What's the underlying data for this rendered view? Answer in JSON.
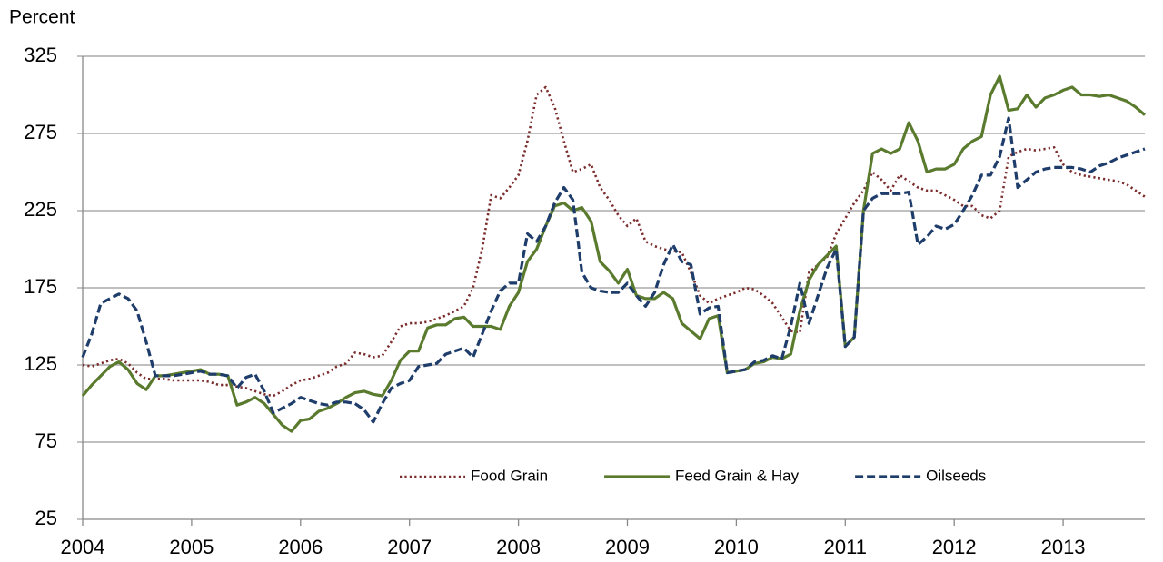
{
  "chart_data": {
    "type": "line",
    "y_label": "Percent",
    "x": [
      2004,
      2004.083,
      2004.167,
      2004.25,
      2004.333,
      2004.417,
      2004.5,
      2004.583,
      2004.667,
      2004.75,
      2004.833,
      2004.917,
      2005,
      2005.083,
      2005.167,
      2005.25,
      2005.333,
      2005.417,
      2005.5,
      2005.583,
      2005.667,
      2005.75,
      2005.833,
      2005.917,
      2006,
      2006.083,
      2006.167,
      2006.25,
      2006.333,
      2006.417,
      2006.5,
      2006.583,
      2006.667,
      2006.75,
      2006.833,
      2006.917,
      2007,
      2007.083,
      2007.167,
      2007.25,
      2007.333,
      2007.417,
      2007.5,
      2007.583,
      2007.667,
      2007.75,
      2007.833,
      2007.917,
      2008,
      2008.083,
      2008.167,
      2008.25,
      2008.333,
      2008.417,
      2008.5,
      2008.583,
      2008.667,
      2008.75,
      2008.833,
      2008.917,
      2009,
      2009.083,
      2009.167,
      2009.25,
      2009.333,
      2009.417,
      2009.5,
      2009.583,
      2009.667,
      2009.75,
      2009.833,
      2009.917,
      2010,
      2010.083,
      2010.167,
      2010.25,
      2010.333,
      2010.417,
      2010.5,
      2010.583,
      2010.667,
      2010.75,
      2010.833,
      2010.917,
      2011,
      2011.083,
      2011.167,
      2011.25,
      2011.333,
      2011.417,
      2011.5,
      2011.583,
      2011.667,
      2011.75,
      2011.833,
      2011.917,
      2012,
      2012.083,
      2012.167,
      2012.25,
      2012.333,
      2012.417,
      2012.5,
      2012.583,
      2012.667,
      2012.75,
      2012.833,
      2012.917,
      2013,
      2013.083,
      2013.167,
      2013.25,
      2013.333,
      2013.417,
      2013.5,
      2013.583,
      2013.667,
      2013.75
    ],
    "series": [
      {
        "name": "Food Grain",
        "color": "#7b2c2c",
        "style": "dotted",
        "values": [
          125,
          124,
          126,
          128,
          129,
          126,
          120,
          116,
          116,
          116,
          115,
          115,
          115,
          115,
          114,
          112,
          112,
          111,
          110,
          108,
          106,
          105,
          108,
          112,
          115,
          116,
          118,
          120,
          124,
          126,
          133,
          132,
          130,
          131,
          140,
          150,
          152,
          152,
          153,
          155,
          157,
          160,
          163,
          175,
          200,
          235,
          233,
          240,
          248,
          270,
          300,
          305,
          292,
          270,
          250,
          252,
          255,
          240,
          232,
          222,
          215,
          220,
          205,
          202,
          200,
          199,
          198,
          185,
          170,
          165,
          168,
          170,
          172,
          175,
          174,
          170,
          165,
          156,
          147,
          146,
          185,
          190,
          195,
          210,
          220,
          230,
          238,
          250,
          245,
          238,
          248,
          244,
          240,
          238,
          238,
          235,
          232,
          228,
          228,
          222,
          220,
          225,
          260,
          263,
          265,
          264,
          265,
          266,
          255,
          250,
          248,
          247,
          246,
          245,
          244,
          242,
          238,
          234
        ]
      },
      {
        "name": "Feed Grain & Hay",
        "color": "#5a7a2e",
        "style": "solid",
        "values": [
          105,
          112,
          118,
          124,
          127,
          122,
          113,
          109,
          118,
          118,
          119,
          120,
          121,
          122,
          119,
          119,
          118,
          99,
          101,
          104,
          100,
          93,
          86,
          82,
          89,
          90,
          95,
          97,
          100,
          104,
          107,
          108,
          106,
          105,
          115,
          128,
          134,
          134,
          149,
          151,
          151,
          155,
          156,
          150,
          150,
          150,
          148,
          163,
          172,
          192,
          200,
          215,
          228,
          230,
          225,
          227,
          218,
          192,
          186,
          178,
          187,
          170,
          168,
          168,
          172,
          168,
          152,
          147,
          142,
          155,
          157,
          120,
          121,
          122,
          126,
          127,
          130,
          129,
          132,
          160,
          180,
          190,
          196,
          202,
          137,
          143,
          225,
          262,
          265,
          262,
          265,
          282,
          270,
          250,
          252,
          252,
          255,
          265,
          270,
          273,
          300,
          312,
          290,
          291,
          300,
          292,
          298,
          300,
          303,
          305,
          300,
          300,
          299,
          300,
          298,
          296,
          292,
          287
        ]
      },
      {
        "name": "Oilseeds",
        "color": "#1f3d6b",
        "style": "dashed",
        "values": [
          130,
          145,
          165,
          168,
          171,
          168,
          160,
          140,
          118,
          118,
          118,
          119,
          120,
          121,
          119,
          119,
          118,
          110,
          117,
          119,
          108,
          94,
          97,
          100,
          104,
          102,
          100,
          99,
          101,
          101,
          100,
          96,
          88,
          100,
          110,
          113,
          115,
          124,
          125,
          126,
          132,
          134,
          136,
          130,
          145,
          160,
          173,
          178,
          178,
          210,
          205,
          215,
          230,
          240,
          232,
          185,
          175,
          173,
          172,
          172,
          178,
          170,
          163,
          172,
          190,
          203,
          192,
          190,
          158,
          162,
          163,
          120,
          121,
          122,
          127,
          128,
          131,
          129,
          150,
          178,
          152,
          170,
          188,
          200,
          137,
          143,
          225,
          233,
          236,
          236,
          236,
          237,
          203,
          208,
          215,
          213,
          216,
          225,
          235,
          248,
          248,
          260,
          285,
          240,
          245,
          250,
          252,
          253,
          253,
          253,
          252,
          250,
          254,
          256,
          259,
          261,
          263,
          265
        ]
      }
    ],
    "xlim": [
      2004,
      2013.75
    ],
    "xticks": [
      2004,
      2005,
      2006,
      2007,
      2008,
      2009,
      2010,
      2011,
      2012,
      2013
    ],
    "ylim": [
      25,
      325
    ],
    "yticks": [
      25,
      75,
      125,
      175,
      225,
      275,
      325
    ],
    "grid": true,
    "legend": "lower center"
  }
}
